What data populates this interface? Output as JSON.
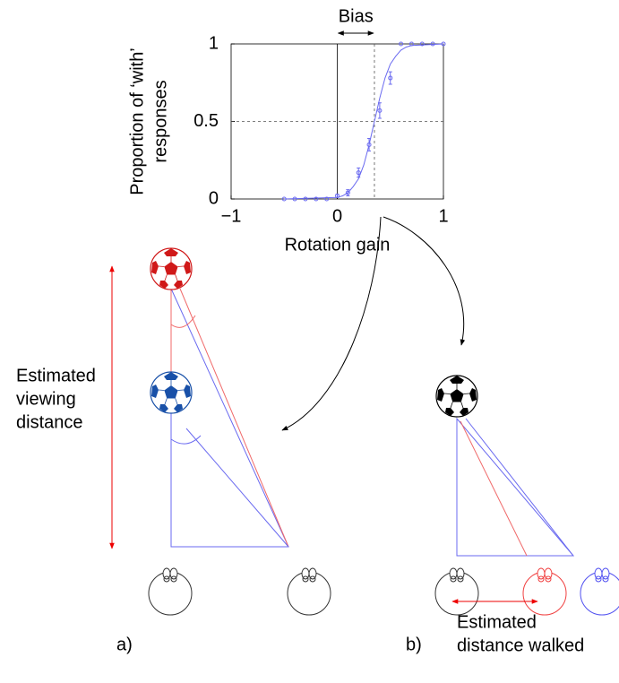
{
  "chart_data": {
    "type": "scatter",
    "x_label": "Rotation gain",
    "y_label": [
      "Proportion of ‘with’",
      "responses"
    ],
    "annotation": "Bias",
    "bias_x": 0.35,
    "reference_y": 0.5,
    "color": "#6a6af0",
    "xlim": [
      -1,
      1
    ],
    "ylim": [
      0,
      1
    ],
    "xticks": [
      {
        "value": -1,
        "label": "−1"
      },
      0,
      1
    ],
    "yticks": [
      0,
      0.5,
      1
    ],
    "x": [
      -0.5,
      -0.4,
      -0.3,
      -0.2,
      -0.1,
      0,
      0.1,
      0.2,
      0.3,
      0.4,
      0.5,
      0.6,
      0.7,
      0.8,
      0.9,
      1.0
    ],
    "values": [
      0,
      0,
      0,
      0,
      0,
      0.02,
      0.04,
      0.17,
      0.35,
      0.57,
      0.78,
      1,
      1,
      1,
      1,
      1
    ],
    "errors": [
      0,
      0,
      0,
      0,
      0,
      0.01,
      0.02,
      0.03,
      0.04,
      0.05,
      0.04,
      0,
      0,
      0,
      0,
      0
    ],
    "fit": {
      "x": [
        -0.5,
        0,
        0.05,
        0.1,
        0.15,
        0.2,
        0.25,
        0.3,
        0.35,
        0.4,
        0.45,
        0.5,
        0.55,
        0.6,
        0.65,
        0.7,
        1.0
      ],
      "y": [
        0,
        0.01,
        0.02,
        0.04,
        0.08,
        0.13,
        0.22,
        0.35,
        0.5,
        0.65,
        0.78,
        0.87,
        0.92,
        0.96,
        0.98,
        0.99,
        1
      ]
    }
  },
  "diagram": {
    "left_label": [
      "Estimated",
      "viewing",
      "distance"
    ],
    "panel_a": "a)",
    "panel_b": "b)",
    "right_label": [
      "Estimated",
      "distance walked"
    ]
  }
}
